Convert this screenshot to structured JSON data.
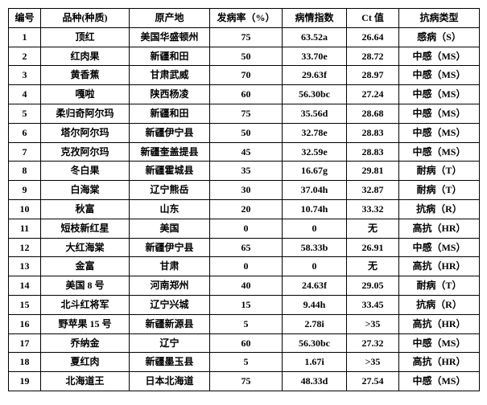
{
  "table": {
    "columns": [
      "编号",
      "品种(种质)",
      "原产地",
      "发病率（%）",
      "病情指数",
      "Ct 值",
      "抗病类型"
    ],
    "rows": [
      [
        "1",
        "顶红",
        "美国华盛顿州",
        "75",
        "63.52a",
        "26.64",
        "感病（S）"
      ],
      [
        "2",
        "红肉果",
        "新疆和田",
        "50",
        "33.70e",
        "28.72",
        "中感（MS）"
      ],
      [
        "3",
        "黄香蕉",
        "甘肃武威",
        "70",
        "29.63f",
        "28.97",
        "中感（MS）"
      ],
      [
        "4",
        "嘎啦",
        "陕西杨凌",
        "60",
        "56.30bc",
        "27.24",
        "中感（MS）"
      ],
      [
        "5",
        "柔归奇阿尔玛",
        "新疆和田",
        "75",
        "35.56d",
        "28.68",
        "中感（MS）"
      ],
      [
        "6",
        "塔尔阿尔玛",
        "新疆伊宁县",
        "50",
        "32.78e",
        "28.83",
        "中感（MS）"
      ],
      [
        "7",
        "克孜阿尔玛",
        "新疆奎盖提县",
        "45",
        "32.59e",
        "28.83",
        "中感（MS）"
      ],
      [
        "8",
        "冬白果",
        "新疆霍城县",
        "35",
        "16.67g",
        "29.81",
        "耐病（T）"
      ],
      [
        "9",
        "白海棠",
        "辽宁熊岳",
        "30",
        "37.04h",
        "32.87",
        "耐病（T）"
      ],
      [
        "10",
        "秋富",
        "山东",
        "20",
        "10.74h",
        "33.32",
        "抗病（R）"
      ],
      [
        "11",
        "短枝新红星",
        "美国",
        "0",
        "0",
        "无",
        "高抗（HR）"
      ],
      [
        "12",
        "大红海棠",
        "新疆伊宁县",
        "65",
        "58.33b",
        "26.91",
        "中感（MS）"
      ],
      [
        "13",
        "金富",
        "甘肃",
        "0",
        "0",
        "无",
        "高抗（HR）"
      ],
      [
        "14",
        "美国 8 号",
        "河南郑州",
        "40",
        "24.63f",
        "29.05",
        "耐病（T）"
      ],
      [
        "15",
        "北斗红将军",
        "辽宁兴城",
        "15",
        "9.44h",
        "33.45",
        "抗病（R）"
      ],
      [
        "16",
        "野苹果 15 号",
        "新疆新源县",
        "5",
        "2.78i",
        ">35",
        "高抗（HR）"
      ],
      [
        "17",
        "乔纳金",
        "辽宁",
        "60",
        "56.30bc",
        "27.32",
        "中感（MS）"
      ],
      [
        "18",
        "夏红肉",
        "新疆墨玉县",
        "5",
        "1.67i",
        ">35",
        "高抗（HR）"
      ],
      [
        "19",
        "北海道王",
        "日本北海道",
        "75",
        "48.33d",
        "27.54",
        "中感（MS）"
      ]
    ]
  }
}
